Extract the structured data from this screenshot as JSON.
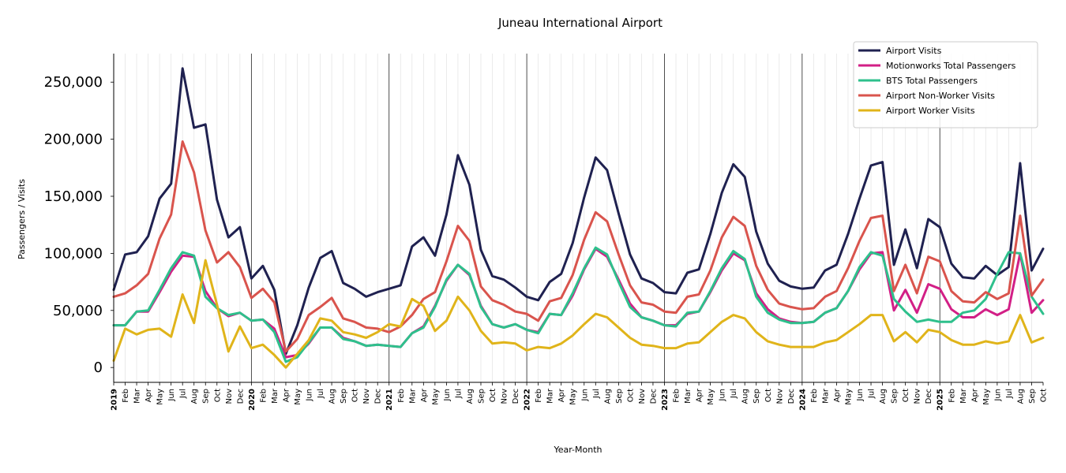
{
  "chart_data": {
    "type": "line",
    "title": "Juneau International Airport",
    "xlabel": "Year-Month",
    "ylabel": "Passengers / Visits",
    "ylim": [
      -13000,
      275000
    ],
    "yticks": [
      0,
      50000,
      100000,
      150000,
      200000,
      250000
    ],
    "ytick_labels": [
      "0",
      "50,000",
      "100,000",
      "150,000",
      "200,000",
      "250,000"
    ],
    "grid": "vertical minor lines at each month, darker lines at each year start",
    "legend_position": "top-right",
    "x": [
      "2019-01",
      "2019-02",
      "2019-03",
      "2019-04",
      "2019-05",
      "2019-06",
      "2019-07",
      "2019-08",
      "2019-09",
      "2019-10",
      "2019-11",
      "2019-12",
      "2020-01",
      "2020-02",
      "2020-03",
      "2020-04",
      "2020-05",
      "2020-06",
      "2020-07",
      "2020-08",
      "2020-09",
      "2020-10",
      "2020-11",
      "2020-12",
      "2021-01",
      "2021-02",
      "2021-03",
      "2021-04",
      "2021-05",
      "2021-06",
      "2021-07",
      "2021-08",
      "2021-09",
      "2021-10",
      "2021-11",
      "2021-12",
      "2022-01",
      "2022-02",
      "2022-03",
      "2022-04",
      "2022-05",
      "2022-06",
      "2022-07",
      "2022-08",
      "2022-09",
      "2022-10",
      "2022-11",
      "2022-12",
      "2023-01",
      "2023-02",
      "2023-03",
      "2023-04",
      "2023-05",
      "2023-06",
      "2023-07",
      "2023-08",
      "2023-09",
      "2023-10",
      "2023-11",
      "2023-12",
      "2024-01",
      "2024-02",
      "2024-03",
      "2024-04",
      "2024-05",
      "2024-06",
      "2024-07",
      "2024-08",
      "2024-09",
      "2024-10",
      "2024-11",
      "2024-12",
      "2025-01",
      "2025-02",
      "2025-03",
      "2025-04",
      "2025-05",
      "2025-06",
      "2025-07",
      "2025-08",
      "2025-09",
      "2025-10"
    ],
    "tick_labels": [
      "2019",
      "Feb",
      "Mar",
      "Apr",
      "May",
      "Jun",
      "Jul",
      "Aug",
      "Sep",
      "Oct",
      "Nov",
      "Dec",
      "2020",
      "Feb",
      "Mar",
      "Apr",
      "May",
      "Jun",
      "Jul",
      "Aug",
      "Sep",
      "Oct",
      "Nov",
      "Dec",
      "2021",
      "Feb",
      "Mar",
      "Apr",
      "May",
      "Jun",
      "Jul",
      "Aug",
      "Sep",
      "Oct",
      "Nov",
      "Dec",
      "2022",
      "Feb",
      "Mar",
      "Apr",
      "May",
      "Jun",
      "Jul",
      "Aug",
      "Sep",
      "Oct",
      "Nov",
      "Dec",
      "2023",
      "Feb",
      "Mar",
      "Apr",
      "May",
      "Jun",
      "Jul",
      "Aug",
      "Sep",
      "Oct",
      "Nov",
      "Dec",
      "2024",
      "Feb",
      "Mar",
      "Apr",
      "May",
      "Jun",
      "Jul",
      "Aug",
      "Sep",
      "Oct",
      "Nov",
      "Dec",
      "2025",
      "Feb",
      "Mar",
      "Apr",
      "May",
      "Jun",
      "Jul",
      "Aug",
      "Sep",
      "Oct"
    ],
    "series": [
      {
        "name": "Airport Visits",
        "color": "#1f2150",
        "values": [
          68000,
          99000,
          101000,
          115000,
          148000,
          161000,
          262000,
          210000,
          213000,
          147000,
          114000,
          123000,
          78000,
          89000,
          68000,
          12000,
          37000,
          70000,
          96000,
          102000,
          74000,
          69000,
          62000,
          66000,
          69000,
          72000,
          106000,
          114000,
          98000,
          134000,
          186000,
          160000,
          103000,
          80000,
          77000,
          70000,
          62000,
          59000,
          75000,
          82000,
          109000,
          149000,
          184000,
          173000,
          135000,
          99000,
          78000,
          74000,
          66000,
          65000,
          83000,
          86000,
          117000,
          153000,
          178000,
          167000,
          119000,
          91000,
          76000,
          71000,
          69000,
          70000,
          85000,
          90000,
          117000,
          148000,
          177000,
          180000,
          90000,
          121000,
          87000,
          130000,
          123000,
          91000,
          79000,
          78000,
          89000,
          81000,
          88000,
          179000,
          85000,
          104000
        ]
      },
      {
        "name": "Motionworks Total Passengers",
        "color": "#d21f86",
        "values": [
          37000,
          37000,
          49000,
          49000,
          66000,
          84000,
          98000,
          97000,
          67000,
          52000,
          45000,
          48000,
          41000,
          42000,
          34000,
          9000,
          11000,
          21000,
          35000,
          35000,
          26000,
          23000,
          19000,
          20000,
          19000,
          18000,
          30000,
          36000,
          54000,
          76000,
          90000,
          81000,
          54000,
          38000,
          35000,
          38000,
          33000,
          31000,
          47000,
          46000,
          63000,
          86000,
          104000,
          97000,
          77000,
          56000,
          44000,
          41000,
          37000,
          37000,
          47000,
          49000,
          66000,
          85000,
          100000,
          94000,
          65000,
          51000,
          43000,
          40000,
          39000,
          40000,
          48000,
          52000,
          67000,
          86000,
          100000,
          101000,
          50000,
          68000,
          48000,
          73000,
          69000,
          51000,
          44000,
          44000,
          51000,
          46000,
          51000,
          100000,
          48000,
          59000
        ]
      },
      {
        "name": "BTS Total Passengers",
        "color": "#2ec08c",
        "values": [
          37000,
          37000,
          49000,
          50000,
          68000,
          87000,
          101000,
          98000,
          62000,
          52000,
          46000,
          48000,
          41000,
          42000,
          31000,
          5000,
          9000,
          22000,
          35000,
          35000,
          25000,
          23000,
          19000,
          20000,
          19000,
          18000,
          30000,
          35000,
          53000,
          77000,
          90000,
          82000,
          53000,
          38000,
          35000,
          38000,
          33000,
          30000,
          47000,
          46000,
          65000,
          87000,
          105000,
          99000,
          75000,
          53000,
          44000,
          41000,
          37000,
          36000,
          48000,
          49000,
          67000,
          87000,
          102000,
          95000,
          62000,
          48000,
          42000,
          39000,
          39000,
          40000,
          48000,
          52000,
          67000,
          88000,
          101000,
          98000,
          60000,
          49000,
          40000,
          42000,
          40000,
          40000,
          48000,
          50000,
          60000,
          82000,
          101000,
          100000,
          62000,
          47000
        ]
      },
      {
        "name": "Airport Non-Worker Visits",
        "color": "#d9544d",
        "values": [
          62000,
          65000,
          72000,
          82000,
          113000,
          134000,
          198000,
          171000,
          120000,
          92000,
          101000,
          88000,
          61000,
          69000,
          57000,
          14000,
          25000,
          46000,
          53000,
          61000,
          43000,
          40000,
          35000,
          34000,
          31000,
          36000,
          46000,
          60000,
          66000,
          93000,
          124000,
          111000,
          71000,
          59000,
          55000,
          49000,
          47000,
          41000,
          58000,
          61000,
          81000,
          112000,
          136000,
          128000,
          99000,
          72000,
          57000,
          55000,
          49000,
          48000,
          62000,
          64000,
          85000,
          114000,
          132000,
          124000,
          89000,
          68000,
          56000,
          53000,
          51000,
          52000,
          62000,
          67000,
          87000,
          111000,
          131000,
          133000,
          67000,
          90000,
          65000,
          97000,
          93000,
          67000,
          58000,
          57000,
          66000,
          60000,
          65000,
          133000,
          63000,
          77000
        ]
      },
      {
        "name": "Airport Worker Visits",
        "color": "#e0b41a",
        "values": [
          6000,
          34000,
          29000,
          33000,
          34000,
          27000,
          64000,
          39000,
          94000,
          55000,
          14000,
          36000,
          17000,
          20000,
          11000,
          0,
          12000,
          24000,
          43000,
          41000,
          31000,
          29000,
          26000,
          31000,
          38000,
          36000,
          60000,
          54000,
          32000,
          41000,
          62000,
          50000,
          32000,
          21000,
          22000,
          21000,
          15000,
          18000,
          17000,
          21000,
          28000,
          38000,
          47000,
          44000,
          35000,
          26000,
          20000,
          19000,
          17000,
          17000,
          21000,
          22000,
          31000,
          40000,
          46000,
          43000,
          31000,
          23000,
          20000,
          18000,
          18000,
          18000,
          22000,
          24000,
          31000,
          38000,
          46000,
          46000,
          23000,
          31000,
          22000,
          33000,
          31000,
          24000,
          20000,
          20000,
          23000,
          21000,
          23000,
          46000,
          22000,
          26000
        ]
      }
    ]
  }
}
